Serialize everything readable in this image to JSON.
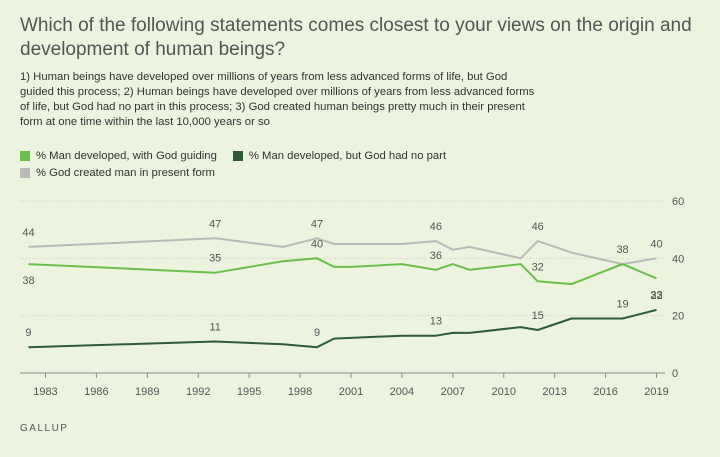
{
  "header": {
    "title": "Which of the following statements comes closest to your views on the origin and development of human beings?",
    "subtitle": "1) Human beings have developed over millions of years from less advanced forms of life, but God guided this process; 2) Human beings have developed over millions of years from less advanced forms of life, but God had no part in this process; 3) God created human beings pretty much in their present form at one time within the last 10,000 years or so"
  },
  "legend": [
    {
      "label": "% Man developed, with God guiding",
      "color": "#6abf4b"
    },
    {
      "label": "% Man developed, but God had no part",
      "color": "#2e5a35"
    },
    {
      "label": "% God created man in present form",
      "color": "#b9bab5"
    }
  ],
  "footer": {
    "source": "GALLUP"
  },
  "chart_data": {
    "type": "line",
    "xlim": [
      1981.5,
      2019.5
    ],
    "ylim": [
      0,
      60
    ],
    "x_ticks": [
      1983,
      1986,
      1989,
      1992,
      1995,
      1998,
      2001,
      2004,
      2007,
      2010,
      2013,
      2016,
      2019
    ],
    "y_ticks": [
      0,
      20,
      40,
      60
    ],
    "grid": true,
    "series": [
      {
        "name": "% God created man in present form",
        "color": "#b9bab5",
        "points": [
          [
            1982,
            44
          ],
          [
            1993,
            47
          ],
          [
            1997,
            44
          ],
          [
            1999,
            47
          ],
          [
            2000,
            45
          ],
          [
            2001,
            45
          ],
          [
            2004,
            45
          ],
          [
            2006,
            46
          ],
          [
            2007,
            43
          ],
          [
            2008,
            44
          ],
          [
            2011,
            40
          ],
          [
            2012,
            46
          ],
          [
            2014,
            42
          ],
          [
            2017,
            38
          ],
          [
            2019,
            40
          ]
        ],
        "labels": [
          [
            1982,
            44,
            "44",
            "above"
          ],
          [
            1993,
            47,
            "47",
            "above"
          ],
          [
            1999,
            47,
            "47",
            "above"
          ],
          [
            2006,
            46,
            "46",
            "above"
          ],
          [
            2012,
            46,
            "46",
            "above"
          ],
          [
            2019,
            40,
            "40",
            "above"
          ]
        ]
      },
      {
        "name": "% Man developed, with God guiding",
        "color": "#6abf4b",
        "points": [
          [
            1982,
            38
          ],
          [
            1993,
            35
          ],
          [
            1997,
            39
          ],
          [
            1999,
            40
          ],
          [
            2000,
            37
          ],
          [
            2001,
            37
          ],
          [
            2004,
            38
          ],
          [
            2006,
            36
          ],
          [
            2007,
            38
          ],
          [
            2008,
            36
          ],
          [
            2011,
            38
          ],
          [
            2012,
            32
          ],
          [
            2014,
            31
          ],
          [
            2017,
            38
          ],
          [
            2019,
            33
          ]
        ],
        "labels": [
          [
            1982,
            38,
            "38",
            "below"
          ],
          [
            1993,
            35,
            "35",
            "above"
          ],
          [
            1999,
            40,
            "40",
            "above"
          ],
          [
            2006,
            36,
            "36",
            "above"
          ],
          [
            2012,
            32,
            "32",
            "above"
          ],
          [
            2017,
            38,
            "38",
            "above"
          ],
          [
            2019,
            33,
            "33",
            "below"
          ]
        ]
      },
      {
        "name": "% Man developed, but God had no part",
        "color": "#2e5a35",
        "points": [
          [
            1982,
            9
          ],
          [
            1993,
            11
          ],
          [
            1997,
            10
          ],
          [
            1999,
            9
          ],
          [
            2000,
            12
          ],
          [
            2004,
            13
          ],
          [
            2006,
            13
          ],
          [
            2007,
            14
          ],
          [
            2008,
            14
          ],
          [
            2011,
            16
          ],
          [
            2012,
            15
          ],
          [
            2014,
            19
          ],
          [
            2017,
            19
          ],
          [
            2019,
            22
          ]
        ],
        "labels": [
          [
            1982,
            9,
            "9",
            "above"
          ],
          [
            1993,
            11,
            "11",
            "above"
          ],
          [
            1999,
            9,
            "9",
            "above"
          ],
          [
            2006,
            13,
            "13",
            "above"
          ],
          [
            2012,
            15,
            "15",
            "above"
          ],
          [
            2017,
            19,
            "19",
            "above"
          ],
          [
            2019,
            22,
            "22",
            "above"
          ]
        ]
      }
    ]
  }
}
